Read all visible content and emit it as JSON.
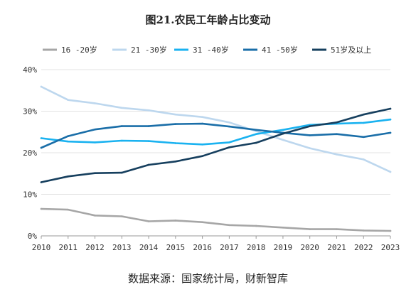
{
  "chart_data": {
    "type": "line",
    "title": "图21.农民工年龄占比变动",
    "source": "数据来源：国家统计局，财新智库",
    "x": [
      "2010",
      "2011",
      "2012",
      "2013",
      "2014",
      "2015",
      "2016",
      "2017",
      "2018",
      "2019",
      "2020",
      "2021",
      "2022",
      "2023"
    ],
    "yticks": [
      "0%",
      "10%",
      "20%",
      "30%",
      "40%"
    ],
    "ylim": [
      0,
      40
    ],
    "xlabel": "",
    "ylabel": "",
    "grid": true,
    "legend_position": "top",
    "series": [
      {
        "name": "16 -20岁",
        "color": "#a6a6a6",
        "values": [
          6.5,
          6.3,
          4.9,
          4.7,
          3.5,
          3.7,
          3.3,
          2.6,
          2.4,
          2.0,
          1.6,
          1.6,
          1.3,
          1.2
        ]
      },
      {
        "name": "21 -30岁",
        "color": "#bdd7ee",
        "values": [
          35.9,
          32.7,
          31.9,
          30.8,
          30.2,
          29.2,
          28.6,
          27.3,
          25.2,
          23.1,
          21.1,
          19.6,
          18.4,
          15.4
        ]
      },
      {
        "name": "31 -40岁",
        "color": "#1ab2f0",
        "values": [
          23.5,
          22.7,
          22.5,
          22.9,
          22.8,
          22.3,
          22.0,
          22.5,
          24.5,
          25.5,
          26.7,
          27.0,
          27.2,
          28.0
        ]
      },
      {
        "name": "41 -50岁",
        "color": "#1a6ea8",
        "values": [
          21.2,
          24.0,
          25.6,
          26.4,
          26.4,
          26.9,
          27.0,
          26.3,
          25.5,
          24.8,
          24.2,
          24.5,
          23.8,
          24.8
        ]
      },
      {
        "name": "51岁及以上",
        "color": "#163f5e",
        "values": [
          12.9,
          14.3,
          15.1,
          15.2,
          17.1,
          17.9,
          19.2,
          21.3,
          22.4,
          24.6,
          26.4,
          27.3,
          29.2,
          30.6
        ]
      }
    ]
  }
}
